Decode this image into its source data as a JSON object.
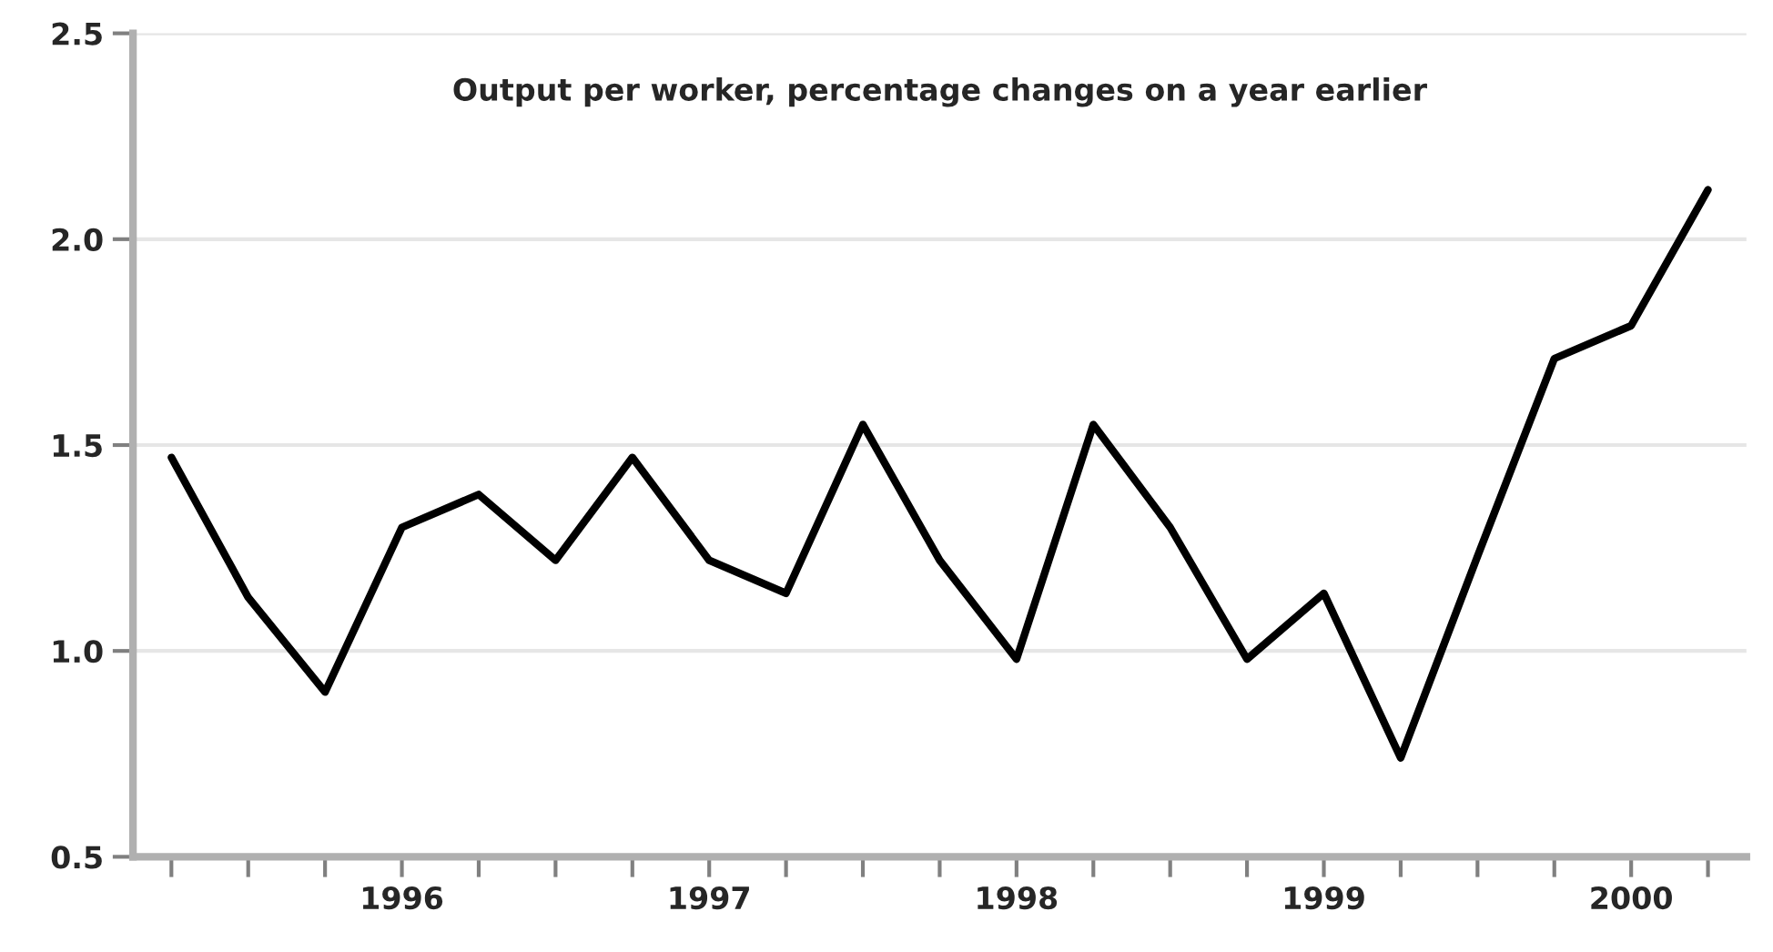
{
  "chart_data": {
    "type": "line",
    "title": "Output per worker, percentage changes on a year earlier",
    "categories": [
      null,
      null,
      null,
      "1996",
      null,
      null,
      null,
      "1997",
      null,
      null,
      null,
      "1998",
      null,
      null,
      null,
      "1999",
      null,
      null,
      null,
      "2000",
      null
    ],
    "series": [
      {
        "color": "#000000",
        "values": [
          1.47,
          1.13,
          0.9,
          1.3,
          1.38,
          1.22,
          1.47,
          1.22,
          1.14,
          1.55,
          1.22,
          0.98,
          1.55,
          1.3,
          0.98,
          1.14,
          0.74,
          1.23,
          1.71,
          1.79,
          2.12
        ]
      }
    ],
    "ylim": [
      0.5,
      2.5
    ],
    "yticks": [
      {
        "value": 0.5,
        "label": "0.5"
      },
      {
        "value": 1.0,
        "label": "1.0"
      },
      {
        "value": 1.5,
        "label": "1.5"
      },
      {
        "value": 2.0,
        "label": "2.0"
      },
      {
        "value": 2.5,
        "label": "2.5"
      }
    ],
    "grid": "y",
    "line_style": "solid",
    "marker": "none"
  }
}
